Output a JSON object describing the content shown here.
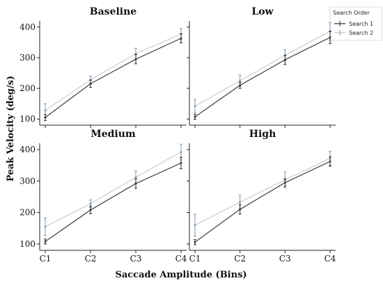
{
  "ylabel": "Peak Velocity (deg/s)",
  "xlabel": "Saccade Amplitude (Bins)",
  "legend": {
    "title": "Search Order",
    "entries": [
      "Search 1",
      "Search 2"
    ]
  },
  "colors": {
    "search1": "#2b2b2b",
    "search2": "#c4c4c4",
    "search2_marker": "#7f97ad"
  },
  "chart_data": [
    {
      "type": "line",
      "title": "Baseline",
      "categories": [
        "C1",
        "C2",
        "C3",
        "C4"
      ],
      "ylim": [
        80,
        420
      ],
      "yticks": [
        100,
        200,
        300,
        400
      ],
      "series": [
        {
          "name": "Search 1",
          "values": [
            105,
            215,
            295,
            363
          ],
          "err": [
            10,
            12,
            15,
            15
          ]
        },
        {
          "name": "Search 2",
          "values": [
            128,
            228,
            313,
            377
          ],
          "err": [
            22,
            12,
            18,
            18
          ]
        }
      ]
    },
    {
      "type": "line",
      "title": "Low",
      "categories": [
        "C1",
        "C2",
        "C3",
        "C4"
      ],
      "ylim": [
        80,
        420
      ],
      "yticks": [
        100,
        200,
        300,
        400
      ],
      "series": [
        {
          "name": "Search 1",
          "values": [
            107,
            210,
            293,
            366
          ],
          "err": [
            8,
            10,
            15,
            20
          ]
        },
        {
          "name": "Search 2",
          "values": [
            142,
            225,
            308,
            386
          ],
          "err": [
            22,
            18,
            18,
            28
          ]
        }
      ]
    },
    {
      "type": "line",
      "title": "Medium",
      "categories": [
        "C1",
        "C2",
        "C3",
        "C4"
      ],
      "ylim": [
        80,
        420
      ],
      "yticks": [
        100,
        200,
        300,
        400
      ],
      "series": [
        {
          "name": "Search 1",
          "values": [
            108,
            208,
            292,
            357
          ],
          "err": [
            8,
            12,
            15,
            18
          ]
        },
        {
          "name": "Search 2",
          "values": [
            155,
            228,
            312,
            392
          ],
          "err": [
            28,
            12,
            20,
            25
          ]
        }
      ]
    },
    {
      "type": "line",
      "title": "High",
      "categories": [
        "C1",
        "C2",
        "C3",
        "C4"
      ],
      "ylim": [
        80,
        420
      ],
      "yticks": [
        100,
        200,
        300,
        400
      ],
      "series": [
        {
          "name": "Search 1",
          "values": [
            106,
            210,
            295,
            362
          ],
          "err": [
            8,
            15,
            12,
            15
          ]
        },
        {
          "name": "Search 2",
          "values": [
            160,
            233,
            304,
            372
          ],
          "err": [
            35,
            22,
            25,
            22
          ]
        }
      ]
    }
  ]
}
